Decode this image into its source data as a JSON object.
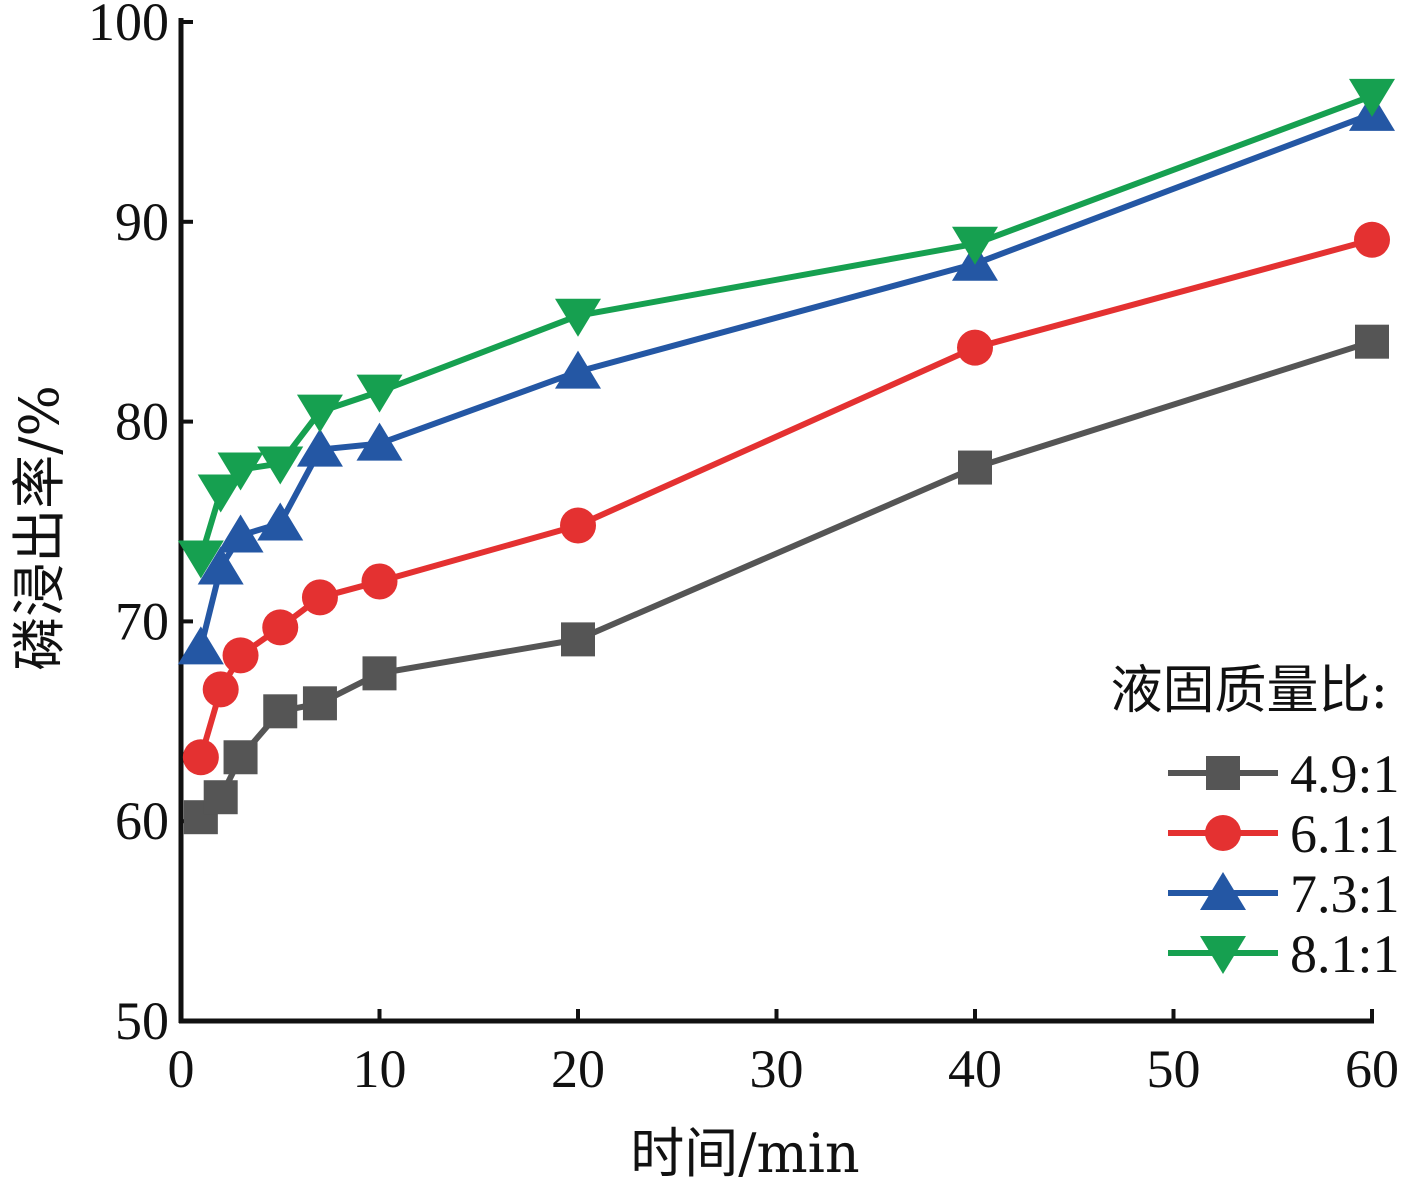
{
  "chart_data": {
    "type": "line",
    "xlabel": "时间/min",
    "ylabel": "磷浸出率/%",
    "xlim": [
      0,
      60
    ],
    "ylim": [
      50,
      100
    ],
    "xticks": [
      0,
      10,
      20,
      30,
      40,
      50,
      60
    ],
    "yticks": [
      50,
      60,
      70,
      80,
      90,
      100
    ],
    "grid": false,
    "legend": {
      "title": "液固质量比:",
      "position": "bottom-right"
    },
    "series": [
      {
        "name": "4.9:1",
        "color": "#555555",
        "marker": "square",
        "x": [
          1,
          2,
          3,
          5,
          7,
          10,
          20,
          40,
          60
        ],
        "y": [
          60.2,
          61.2,
          63.2,
          65.5,
          65.9,
          67.4,
          69.1,
          77.7,
          84.0
        ]
      },
      {
        "name": "6.1:1",
        "color": "#e43131",
        "marker": "circle",
        "x": [
          1,
          2,
          3,
          5,
          7,
          10,
          20,
          40,
          60
        ],
        "y": [
          63.2,
          66.6,
          68.3,
          69.7,
          71.2,
          72.0,
          74.8,
          83.7,
          89.1
        ]
      },
      {
        "name": "7.3:1",
        "color": "#2457a4",
        "marker": "triangle-up",
        "x": [
          1,
          2,
          3,
          5,
          7,
          10,
          20,
          40,
          60
        ],
        "y": [
          68.7,
          72.7,
          74.3,
          74.9,
          78.6,
          78.9,
          82.5,
          87.9,
          95.4
        ]
      },
      {
        "name": "8.1:1",
        "color": "#16a050",
        "marker": "triangle-down",
        "x": [
          1,
          2,
          3,
          5,
          7,
          10,
          20,
          40,
          60
        ],
        "y": [
          73.2,
          76.5,
          77.6,
          77.9,
          80.5,
          81.5,
          85.3,
          88.9,
          96.3
        ]
      }
    ]
  }
}
